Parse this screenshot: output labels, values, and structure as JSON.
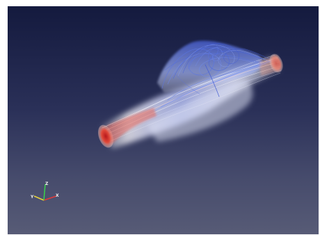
{
  "window": {
    "type": "3d-render-viewport",
    "background_top": "#141a3e",
    "background_bottom": "#575b76"
  },
  "scene": {
    "object": "flow-streamlines-through-expanding-tube",
    "colors": {
      "high": "#d8332a",
      "mid": "#e8e4ee",
      "low": "#3a55d6"
    }
  },
  "orientation_axes": {
    "x_label": "X",
    "y_label": "Y",
    "z_label": "Z",
    "x_color": "#e03a3a",
    "y_color": "#e8d23a",
    "z_color": "#3ad24a"
  }
}
